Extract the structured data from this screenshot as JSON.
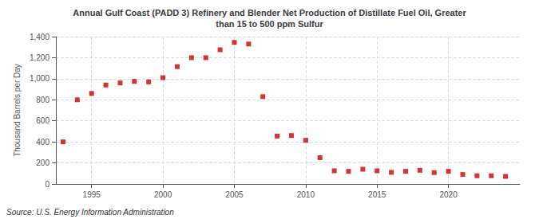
{
  "chart_data": {
    "type": "scatter",
    "title": "Annual Gulf Coast (PADD 3) Refinery and Blender Net Production of Distillate Fuel Oil, Greater\nthan 15 to 500 ppm Sulfur",
    "ylabel": "Thousand Barrels per Day",
    "annotations": [
      "Source: U.S. Energy Information Administration"
    ],
    "x": [
      1993,
      1994,
      1995,
      1996,
      1997,
      1998,
      1999,
      2000,
      2001,
      2002,
      2003,
      2004,
      2005,
      2006,
      2007,
      2008,
      2009,
      2010,
      2011,
      2012,
      2013,
      2014,
      2015,
      2016,
      2017,
      2018,
      2019,
      2020,
      2021,
      2022,
      2023,
      2024
    ],
    "values": [
      400,
      800,
      860,
      940,
      960,
      975,
      970,
      1010,
      1115,
      1200,
      1200,
      1275,
      1345,
      1330,
      830,
      455,
      460,
      415,
      250,
      125,
      120,
      140,
      125,
      110,
      120,
      130,
      108,
      120,
      90,
      78,
      78,
      72
    ],
    "color": "#cc0000",
    "marker": "square",
    "xlim": [
      1992.5,
      2025
    ],
    "xticks": [
      1995,
      2000,
      2005,
      2010,
      2015,
      2020
    ],
    "ylim": [
      0,
      1400
    ],
    "yticks": [
      0,
      200,
      400,
      600,
      {
        "value": 800,
        "label": "800"
      },
      {
        "value": 1000,
        "label": "1,000"
      },
      {
        "value": 1200,
        "label": "1,200"
      },
      {
        "value": 1400,
        "label": "1,400"
      }
    ],
    "grid": true
  }
}
